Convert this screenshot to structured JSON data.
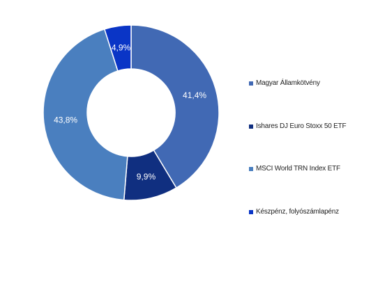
{
  "chart_data": {
    "type": "pie",
    "title": "",
    "categories": [
      "Magyar Államkötvény",
      "Ishares DJ Euro Stoxx 50 ETF",
      "MSCI World TRN Index ETF",
      "Készpénz, folyószámlapénz"
    ],
    "values": [
      41.4,
      9.9,
      43.8,
      4.9
    ],
    "value_labels": [
      "41,4%",
      "9,9%",
      "43,8%",
      "4,9%"
    ],
    "colors": [
      "#4169b4",
      "#102f80",
      "#4a7fbf",
      "#0a35c6"
    ],
    "legend_placement": "right",
    "donut": true
  }
}
